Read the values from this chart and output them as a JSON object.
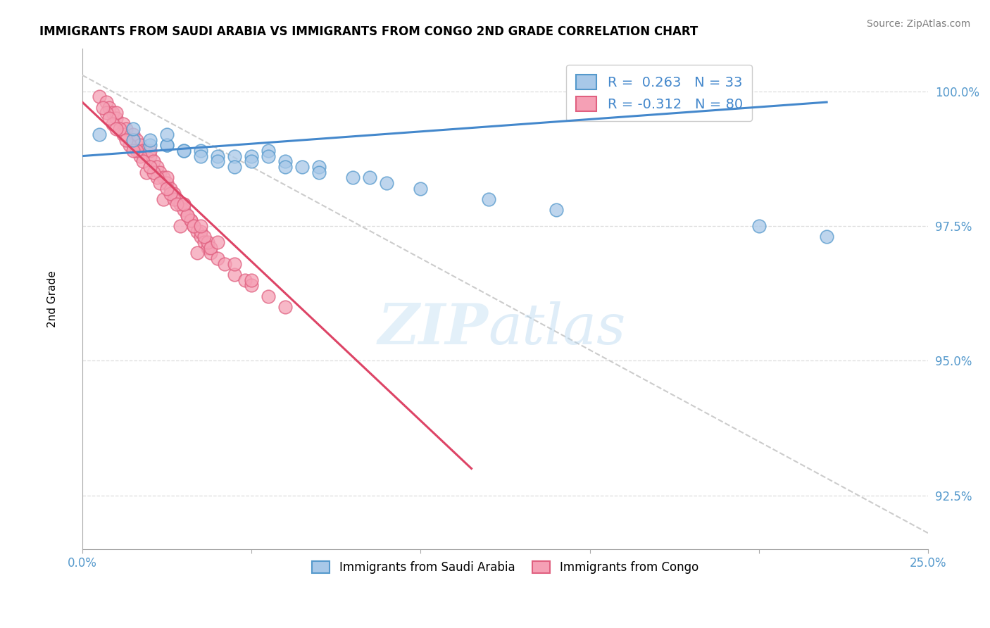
{
  "title": "IMMIGRANTS FROM SAUDI ARABIA VS IMMIGRANTS FROM CONGO 2ND GRADE CORRELATION CHART",
  "source": "Source: ZipAtlas.com",
  "xlim": [
    0.0,
    0.25
  ],
  "ylim": [
    0.915,
    1.008
  ],
  "ylabel": "2nd Grade",
  "legend_saudi_label": "Immigrants from Saudi Arabia",
  "legend_congo_label": "Immigrants from Congo",
  "R_saudi": 0.263,
  "N_saudi": 33,
  "R_congo": -0.312,
  "N_congo": 80,
  "saudi_color": "#a8c8e8",
  "congo_color": "#f5a0b5",
  "saudi_edge_color": "#5599cc",
  "congo_edge_color": "#e06080",
  "saudi_line_color": "#4488cc",
  "congo_line_color": "#dd4466",
  "watermark_zip": "ZIP",
  "watermark_atlas": "atlas",
  "saudi_x": [
    0.005,
    0.015,
    0.02,
    0.025,
    0.03,
    0.035,
    0.04,
    0.045,
    0.05,
    0.055,
    0.06,
    0.065,
    0.07,
    0.02,
    0.025,
    0.03,
    0.035,
    0.04,
    0.05,
    0.055,
    0.06,
    0.07,
    0.08,
    0.09,
    0.1,
    0.12,
    0.14,
    0.2,
    0.22,
    0.085,
    0.045,
    0.015,
    0.025
  ],
  "saudi_y": [
    0.992,
    0.991,
    0.99,
    0.99,
    0.989,
    0.989,
    0.988,
    0.988,
    0.988,
    0.989,
    0.987,
    0.986,
    0.986,
    0.991,
    0.99,
    0.989,
    0.988,
    0.987,
    0.987,
    0.988,
    0.986,
    0.985,
    0.984,
    0.983,
    0.982,
    0.98,
    0.978,
    0.975,
    0.973,
    0.984,
    0.986,
    0.993,
    0.992
  ],
  "congo_x": [
    0.005,
    0.007,
    0.008,
    0.009,
    0.01,
    0.01,
    0.012,
    0.013,
    0.015,
    0.015,
    0.016,
    0.017,
    0.018,
    0.019,
    0.02,
    0.02,
    0.021,
    0.022,
    0.023,
    0.024,
    0.025,
    0.025,
    0.026,
    0.027,
    0.028,
    0.029,
    0.03,
    0.03,
    0.031,
    0.032,
    0.033,
    0.034,
    0.035,
    0.035,
    0.036,
    0.037,
    0.038,
    0.009,
    0.014,
    0.019,
    0.024,
    0.029,
    0.034,
    0.007,
    0.012,
    0.017,
    0.022,
    0.027,
    0.032,
    0.037,
    0.006,
    0.011,
    0.016,
    0.021,
    0.026,
    0.031,
    0.036,
    0.008,
    0.013,
    0.018,
    0.023,
    0.028,
    0.033,
    0.038,
    0.04,
    0.042,
    0.045,
    0.048,
    0.05,
    0.055,
    0.01,
    0.02,
    0.03,
    0.04,
    0.05,
    0.015,
    0.025,
    0.035,
    0.045,
    0.06
  ],
  "congo_y": [
    0.999,
    0.998,
    0.997,
    0.996,
    0.995,
    0.996,
    0.994,
    0.993,
    0.992,
    0.991,
    0.991,
    0.99,
    0.989,
    0.989,
    0.988,
    0.989,
    0.987,
    0.986,
    0.985,
    0.984,
    0.983,
    0.984,
    0.982,
    0.981,
    0.98,
    0.979,
    0.978,
    0.979,
    0.977,
    0.976,
    0.975,
    0.974,
    0.973,
    0.974,
    0.972,
    0.971,
    0.97,
    0.994,
    0.99,
    0.985,
    0.98,
    0.975,
    0.97,
    0.996,
    0.992,
    0.988,
    0.984,
    0.98,
    0.976,
    0.972,
    0.997,
    0.993,
    0.989,
    0.985,
    0.981,
    0.977,
    0.973,
    0.995,
    0.991,
    0.987,
    0.983,
    0.979,
    0.975,
    0.971,
    0.969,
    0.968,
    0.966,
    0.965,
    0.964,
    0.962,
    0.993,
    0.986,
    0.979,
    0.972,
    0.965,
    0.989,
    0.982,
    0.975,
    0.968,
    0.96
  ],
  "saudi_line_x": [
    0.0,
    0.22
  ],
  "saudi_line_y": [
    0.988,
    0.998
  ],
  "congo_line_x": [
    0.0,
    0.115
  ],
  "congo_line_y": [
    0.998,
    0.93
  ],
  "ref_line_x": [
    0.0,
    0.25
  ],
  "ref_line_y": [
    1.003,
    0.918
  ]
}
